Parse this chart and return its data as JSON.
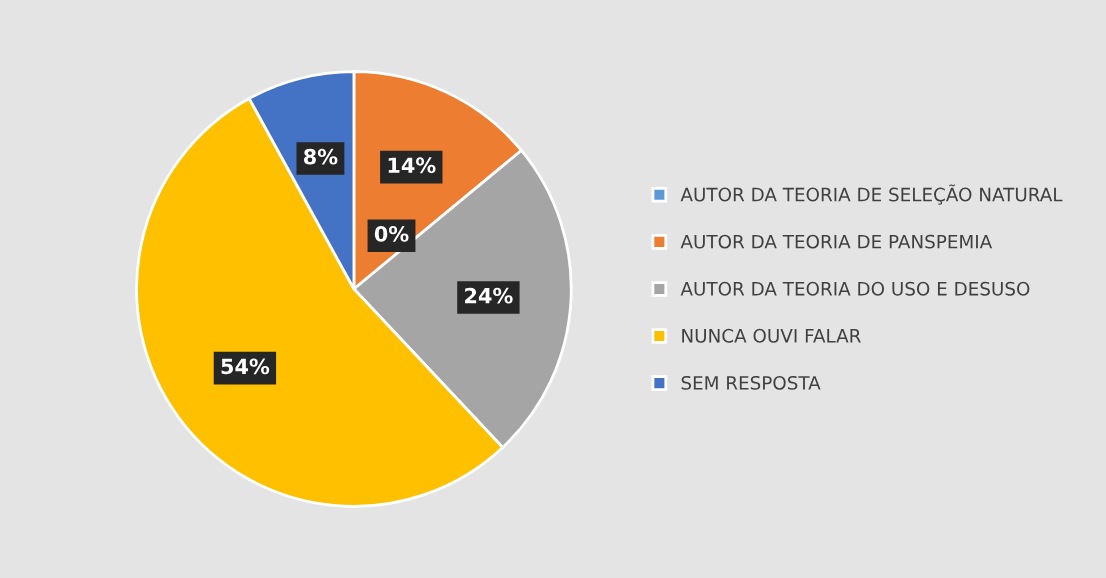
{
  "chart_data": {
    "type": "pie",
    "categories": [
      "AUTOR DA TEORIA DE SELEÇÃO NATURAL",
      "AUTOR DA TEORIA DE PANSPEMIA",
      "AUTOR DA TEORIA DO USO E DESUSO",
      "NUNCA OUVI FALAR",
      "SEM RESPOSTA"
    ],
    "values": [
      0,
      14,
      24,
      54,
      8
    ],
    "colors": [
      "#5b9bd5",
      "#ed7d31",
      "#a5a5a5",
      "#ffc000",
      "#4472c4"
    ],
    "value_labels": [
      "0%",
      "14%",
      "24%",
      "54%",
      "8%"
    ],
    "legend": "right"
  }
}
